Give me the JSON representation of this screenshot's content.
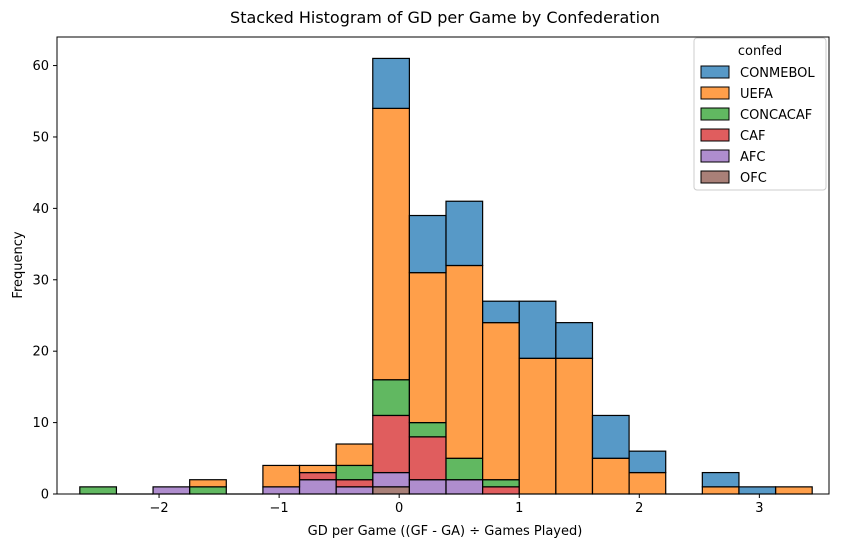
{
  "chart_data": {
    "type": "bar",
    "title": "Stacked Histogram of GD per Game by Confederation",
    "xlabel": "GD per Game ((GF - GA) ÷ Games Played)",
    "ylabel": "Frequency",
    "xlim": [
      -2.85,
      3.58
    ],
    "ylim": [
      0,
      64
    ],
    "xticks": [
      -2,
      -1,
      0,
      1,
      2,
      3
    ],
    "xtick_labels": [
      "−2",
      "−1",
      "0",
      "1",
      "2",
      "3"
    ],
    "yticks": [
      0,
      10,
      20,
      30,
      40,
      50,
      60
    ],
    "grid": false,
    "legend": {
      "title": "confed",
      "placement": "top-right"
    },
    "bin_edges": [
      -2.66,
      -2.355,
      -2.05,
      -1.745,
      -1.44,
      -1.135,
      -0.83,
      -0.525,
      -0.22,
      0.085,
      0.39,
      0.695,
      1.0,
      1.305,
      1.61,
      1.915,
      2.22,
      2.525,
      2.83,
      3.135,
      3.44
    ],
    "series": [
      {
        "name": "OFC",
        "color": "#8c564b",
        "values": [
          0,
          0,
          0,
          0,
          0,
          0,
          0,
          0,
          1,
          0,
          0,
          0,
          0,
          0,
          0,
          0,
          0,
          0,
          0,
          0
        ]
      },
      {
        "name": "AFC",
        "color": "#9467bd",
        "values": [
          0,
          0,
          1,
          0,
          0,
          1,
          2,
          1,
          2,
          2,
          2,
          0,
          0,
          0,
          0,
          0,
          0,
          0,
          0,
          0
        ]
      },
      {
        "name": "CAF",
        "color": "#d62728",
        "values": [
          0,
          0,
          0,
          0,
          0,
          0,
          1,
          1,
          8,
          6,
          0,
          1,
          0,
          0,
          0,
          0,
          0,
          0,
          0,
          0
        ]
      },
      {
        "name": "CONCACAF",
        "color": "#2ca02c",
        "values": [
          1,
          0,
          0,
          1,
          0,
          0,
          0,
          2,
          5,
          2,
          3,
          1,
          0,
          0,
          0,
          0,
          0,
          0,
          0,
          0
        ]
      },
      {
        "name": "UEFA",
        "color": "#ff7f0e",
        "values": [
          0,
          0,
          0,
          1,
          0,
          3,
          1,
          3,
          38,
          21,
          27,
          22,
          19,
          19,
          5,
          3,
          0,
          1,
          0,
          1
        ]
      },
      {
        "name": "CONMEBOL",
        "color": "#1f77b4",
        "values": [
          0,
          0,
          0,
          0,
          0,
          0,
          0,
          0,
          7,
          8,
          9,
          3,
          8,
          5,
          6,
          3,
          0,
          2,
          1,
          0
        ]
      }
    ],
    "legend_order": [
      "CONMEBOL",
      "UEFA",
      "CONCACAF",
      "CAF",
      "AFC",
      "OFC"
    ]
  }
}
